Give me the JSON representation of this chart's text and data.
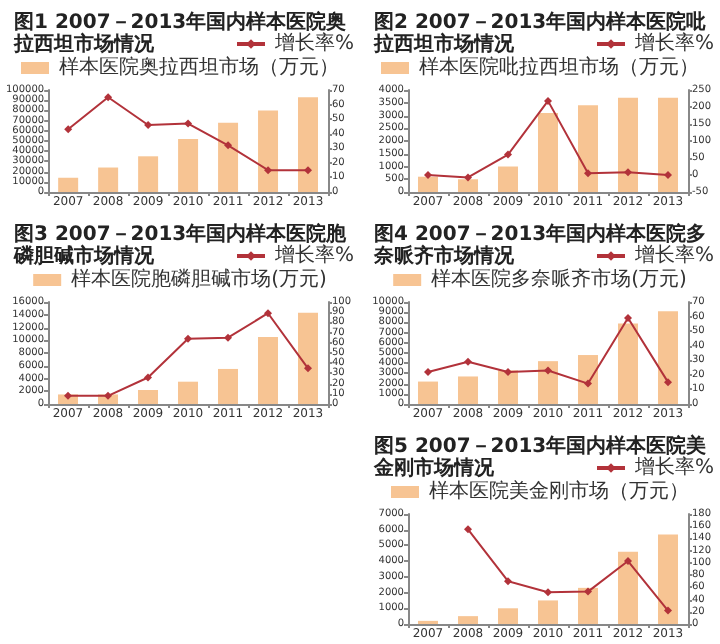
{
  "chart_data": [
    {
      "type": "bar",
      "title": "图1 2007－2013年国内样本医院奥拉西坦市场情况",
      "categories": [
        "2007",
        "2008",
        "2009",
        "2010",
        "2011",
        "2012",
        "2013"
      ],
      "series": [
        {
          "name": "样本医院奥拉西坦市场（万元）",
          "color": "#f7c493",
          "values": [
            14000,
            24000,
            35000,
            52000,
            68000,
            80000,
            93000
          ]
        },
        {
          "name": "增长率%",
          "type": "line",
          "axis": "y2",
          "color": "#b2323a",
          "values": [
            43,
            65,
            46,
            47,
            32,
            15,
            15
          ]
        }
      ],
      "ylim": [
        0,
        100000
      ],
      "yticks": [
        0,
        10000,
        20000,
        30000,
        40000,
        50000,
        60000,
        70000,
        80000,
        90000,
        100000
      ],
      "y2lim": [
        0,
        70
      ],
      "y2ticks": [
        0,
        10,
        20,
        30,
        40,
        50,
        60,
        70
      ],
      "legend": "top",
      "marker": "diamond",
      "grid": false
    },
    {
      "type": "bar",
      "title": "图2 2007－2013年国内样本医院吡拉西坦市场情况",
      "categories": [
        "2007",
        "2008",
        "2009",
        "2010",
        "2011",
        "2012",
        "2013"
      ],
      "series": [
        {
          "name": "样本医院吡拉西坦市场（万元）",
          "color": "#f7c493",
          "values": [
            600,
            500,
            1000,
            3100,
            3400,
            3700,
            3700
          ]
        },
        {
          "name": "增长率%",
          "type": "line",
          "axis": "y2",
          "color": "#b2323a",
          "values": [
            0,
            -7,
            60,
            218,
            5,
            8,
            0
          ]
        }
      ],
      "ylim": [
        0,
        4000
      ],
      "yticks": [
        0,
        500,
        1000,
        1500,
        2000,
        2500,
        3000,
        3500,
        4000
      ],
      "y2lim": [
        -50,
        250
      ],
      "y2ticks": [
        -50,
        0,
        50,
        100,
        150,
        200,
        250
      ],
      "legend": "top",
      "marker": "diamond",
      "grid": false
    },
    {
      "type": "bar",
      "title": "图3 2007－2013年国内样本医院胞磷胆碱市场情况",
      "categories": [
        "2007",
        "2008",
        "2009",
        "2010",
        "2011",
        "2012",
        "2013"
      ],
      "series": [
        {
          "name": "样本医院胞磷胆碱市场(万元)",
          "color": "#f7c493",
          "values": [
            1500,
            1500,
            2200,
            3500,
            5500,
            10500,
            14300
          ]
        },
        {
          "name": "增长率%",
          "type": "line",
          "axis": "y2",
          "color": "#b2323a",
          "values": [
            8,
            8,
            26,
            64,
            65,
            89,
            35
          ]
        }
      ],
      "ylim": [
        0,
        16000
      ],
      "yticks": [
        0,
        2000,
        4000,
        6000,
        8000,
        10000,
        12000,
        14000,
        16000
      ],
      "y2lim": [
        0,
        100
      ],
      "y2ticks": [
        0,
        10,
        20,
        30,
        40,
        50,
        60,
        70,
        80,
        90,
        100
      ],
      "legend": "top",
      "marker": "diamond",
      "grid": false
    },
    {
      "type": "bar",
      "title": "图4 2007－2013年国内样本医院多奈哌齐市场情况",
      "categories": [
        "2007",
        "2008",
        "2009",
        "2010",
        "2011",
        "2012",
        "2013"
      ],
      "series": [
        {
          "name": "样本医院多奈哌齐市场(万元)",
          "color": "#f7c493",
          "values": [
            2200,
            2700,
            3300,
            4200,
            4800,
            7900,
            9100
          ]
        },
        {
          "name": "增长率%",
          "type": "line",
          "axis": "y2",
          "color": "#b2323a",
          "values": [
            22,
            29,
            22,
            23,
            14,
            59,
            15
          ]
        }
      ],
      "ylim": [
        0,
        10000
      ],
      "yticks": [
        0,
        1000,
        2000,
        3000,
        4000,
        5000,
        6000,
        7000,
        8000,
        9000,
        10000
      ],
      "y2lim": [
        0,
        70
      ],
      "y2ticks": [
        0,
        10,
        20,
        30,
        40,
        50,
        60,
        70
      ],
      "legend": "top",
      "marker": "diamond",
      "grid": false
    },
    {
      "type": "bar",
      "title": "图5 2007－2013年国内样本医院美金刚市场情况",
      "categories": [
        "2007",
        "2008",
        "2009",
        "2010",
        "2011",
        "2012",
        "2013"
      ],
      "series": [
        {
          "name": "样本医院美金刚市场（万元）",
          "color": "#f7c493",
          "values": [
            200,
            500,
            1000,
            1500,
            2300,
            4600,
            5700
          ]
        },
        {
          "name": "增长率%",
          "type": "line",
          "axis": "y2",
          "color": "#b2323a",
          "values": [
            null,
            155,
            70,
            52,
            53,
            103,
            22
          ]
        }
      ],
      "ylim": [
        0,
        7000
      ],
      "yticks": [
        0,
        1000,
        2000,
        3000,
        4000,
        5000,
        6000,
        7000
      ],
      "y2lim": [
        0,
        180
      ],
      "y2ticks": [
        0,
        20,
        40,
        60,
        80,
        100,
        120,
        140,
        160,
        180
      ],
      "legend": "top",
      "marker": "diamond",
      "grid": false
    }
  ]
}
